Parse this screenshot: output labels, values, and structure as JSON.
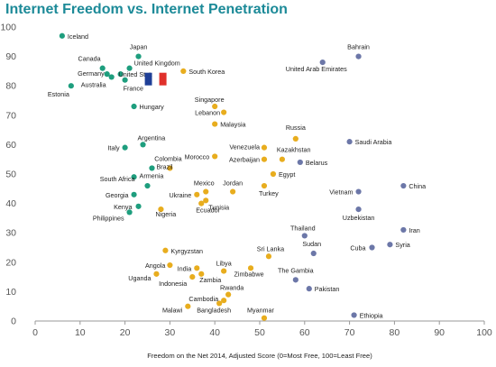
{
  "chart_data": {
    "type": "scatter",
    "title": "Internet Freedom vs. Internet Penetration",
    "xlabel": "Freedom on the Net 2014, Adjusted Score (0=Most Free, 100=Least Free)",
    "ylabel": "",
    "xlim": [
      0,
      100
    ],
    "ylim": [
      0,
      100
    ],
    "xticks": [
      0,
      10,
      20,
      30,
      40,
      50,
      60,
      70,
      80,
      90,
      100
    ],
    "yticks": [
      0,
      10,
      20,
      30,
      40,
      50,
      60,
      70,
      80,
      90,
      100
    ],
    "grid": false,
    "colors": {
      "free": "#1e9e7e",
      "partly_free": "#e8ad1e",
      "not_free": "#6c77a8"
    },
    "annotation_flag": {
      "type": "france-flag-icon",
      "near": "France"
    },
    "points": [
      {
        "name": "Iceland",
        "x": 6,
        "y": 97,
        "group": "free"
      },
      {
        "name": "Japan",
        "x": 23,
        "y": 90,
        "group": "free"
      },
      {
        "name": "Canada",
        "x": 15,
        "y": 86,
        "group": "free"
      },
      {
        "name": "United Kingdom",
        "x": 21,
        "y": 86,
        "group": "free"
      },
      {
        "name": "Germany",
        "x": 16,
        "y": 84,
        "group": "free"
      },
      {
        "name": "United States",
        "x": 19,
        "y": 84,
        "group": "free"
      },
      {
        "name": "Australia",
        "x": 17,
        "y": 83,
        "group": "free"
      },
      {
        "name": "France",
        "x": 20,
        "y": 82,
        "group": "free"
      },
      {
        "name": "Estonia",
        "x": 8,
        "y": 80,
        "group": "free"
      },
      {
        "name": "Hungary",
        "x": 22,
        "y": 73,
        "group": "free"
      },
      {
        "name": "Argentina",
        "x": 24,
        "y": 60,
        "group": "free"
      },
      {
        "name": "Italy",
        "x": 20,
        "y": 59,
        "group": "free"
      },
      {
        "name": "Brazil",
        "x": 26,
        "y": 52,
        "group": "free"
      },
      {
        "name": "Armenia",
        "x": 22,
        "y": 49,
        "group": "free"
      },
      {
        "name": "South Africa",
        "x": 25,
        "y": 46,
        "group": "free"
      },
      {
        "name": "Georgia",
        "x": 22,
        "y": 43,
        "group": "free"
      },
      {
        "name": "Kenya",
        "x": 23,
        "y": 39,
        "group": "free"
      },
      {
        "name": "Philippines",
        "x": 21,
        "y": 37,
        "group": "free"
      },
      {
        "name": "South Korea",
        "x": 33,
        "y": 85,
        "group": "partly_free"
      },
      {
        "name": "Singapore",
        "x": 40,
        "y": 73,
        "group": "partly_free"
      },
      {
        "name": "Lebanon",
        "x": 42,
        "y": 71,
        "group": "partly_free"
      },
      {
        "name": "Malaysia",
        "x": 40,
        "y": 67,
        "group": "partly_free"
      },
      {
        "name": "Colombia",
        "x": 30,
        "y": 52,
        "group": "partly_free"
      },
      {
        "name": "Morocco",
        "x": 40,
        "y": 56,
        "group": "partly_free"
      },
      {
        "name": "Venezuela",
        "x": 51,
        "y": 59,
        "group": "partly_free"
      },
      {
        "name": "Azerbaijan",
        "x": 51,
        "y": 55,
        "group": "partly_free"
      },
      {
        "name": "Kazakhstan",
        "x": 55,
        "y": 55,
        "group": "partly_free"
      },
      {
        "name": "Russia",
        "x": 58,
        "y": 62,
        "group": "partly_free"
      },
      {
        "name": "Egypt",
        "x": 53,
        "y": 50,
        "group": "partly_free"
      },
      {
        "name": "Mexico",
        "x": 38,
        "y": 44,
        "group": "partly_free"
      },
      {
        "name": "Ukraine",
        "x": 36,
        "y": 43,
        "group": "partly_free"
      },
      {
        "name": "Tunisia",
        "x": 38,
        "y": 41,
        "group": "partly_free"
      },
      {
        "name": "Nigeria",
        "x": 28,
        "y": 38,
        "group": "partly_free"
      },
      {
        "name": "Ecuador",
        "x": 37,
        "y": 40,
        "group": "partly_free"
      },
      {
        "name": "Jordan",
        "x": 44,
        "y": 44,
        "group": "partly_free"
      },
      {
        "name": "Turkey",
        "x": 51,
        "y": 46,
        "group": "partly_free"
      },
      {
        "name": "Kyrgyzstan",
        "x": 29,
        "y": 24,
        "group": "partly_free"
      },
      {
        "name": "Angola",
        "x": 30,
        "y": 19,
        "group": "partly_free"
      },
      {
        "name": "India",
        "x": 36,
        "y": 18,
        "group": "partly_free"
      },
      {
        "name": "Uganda",
        "x": 27,
        "y": 16,
        "group": "partly_free"
      },
      {
        "name": "Indonesia",
        "x": 35,
        "y": 15,
        "group": "partly_free"
      },
      {
        "name": "Zambia",
        "x": 37,
        "y": 16,
        "group": "partly_free"
      },
      {
        "name": "Libya",
        "x": 42,
        "y": 17,
        "group": "partly_free"
      },
      {
        "name": "Zimbabwe",
        "x": 48,
        "y": 18,
        "group": "partly_free"
      },
      {
        "name": "Sri Lanka",
        "x": 52,
        "y": 22,
        "group": "partly_free"
      },
      {
        "name": "Rwanda",
        "x": 43,
        "y": 9,
        "group": "partly_free"
      },
      {
        "name": "Cambodia",
        "x": 42,
        "y": 7,
        "group": "partly_free"
      },
      {
        "name": "Malawi",
        "x": 34,
        "y": 5,
        "group": "partly_free"
      },
      {
        "name": "Bangladesh",
        "x": 41,
        "y": 6,
        "group": "partly_free"
      },
      {
        "name": "Myanmar",
        "x": 51,
        "y": 1,
        "group": "partly_free"
      },
      {
        "name": "Bahrain",
        "x": 72,
        "y": 90,
        "group": "not_free"
      },
      {
        "name": "United Arab Emirates",
        "x": 64,
        "y": 88,
        "group": "not_free"
      },
      {
        "name": "Saudi Arabia",
        "x": 70,
        "y": 61,
        "group": "not_free"
      },
      {
        "name": "Belarus",
        "x": 59,
        "y": 54,
        "group": "not_free"
      },
      {
        "name": "China",
        "x": 82,
        "y": 46,
        "group": "not_free"
      },
      {
        "name": "Vietnam",
        "x": 72,
        "y": 44,
        "group": "not_free"
      },
      {
        "name": "Uzbekistan",
        "x": 72,
        "y": 38,
        "group": "not_free"
      },
      {
        "name": "Thailand",
        "x": 60,
        "y": 29,
        "group": "not_free"
      },
      {
        "name": "Iran",
        "x": 82,
        "y": 31,
        "group": "not_free"
      },
      {
        "name": "Sudan",
        "x": 62,
        "y": 23,
        "group": "not_free"
      },
      {
        "name": "Cuba",
        "x": 75,
        "y": 25,
        "group": "not_free"
      },
      {
        "name": "Syria",
        "x": 79,
        "y": 26,
        "group": "not_free"
      },
      {
        "name": "The Gambia",
        "x": 58,
        "y": 14,
        "group": "not_free"
      },
      {
        "name": "Pakistan",
        "x": 61,
        "y": 11,
        "group": "not_free"
      },
      {
        "name": "Ethiopia",
        "x": 71,
        "y": 2,
        "group": "not_free"
      }
    ]
  }
}
